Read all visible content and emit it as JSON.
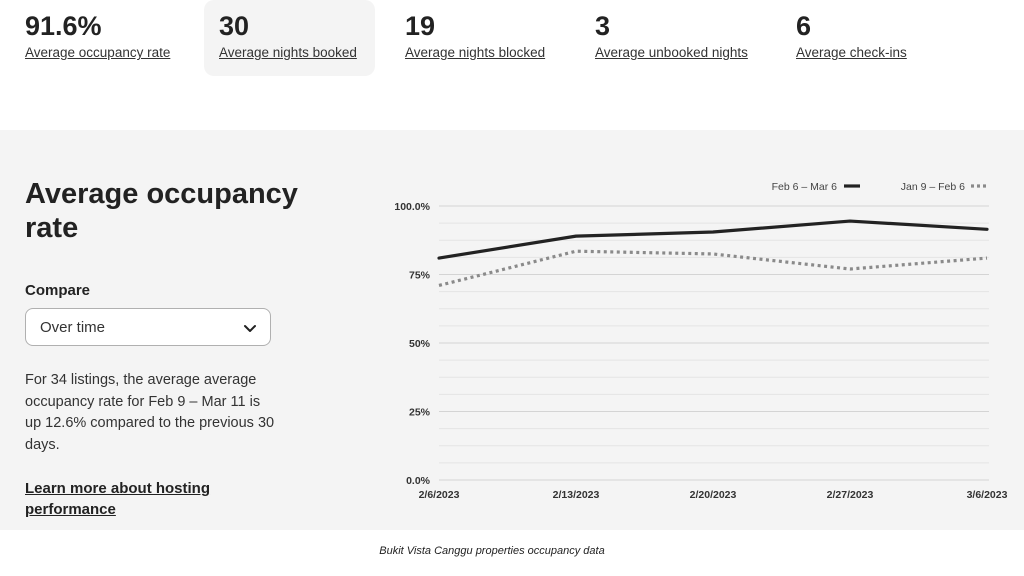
{
  "stats": [
    {
      "value": "91.6%",
      "label": "Average occupancy rate"
    },
    {
      "value": "30",
      "label": "Average nights booked"
    },
    {
      "value": "19",
      "label": "Average nights blocked"
    },
    {
      "value": "3",
      "label": "Average unbooked nights"
    },
    {
      "value": "6",
      "label": "Average check-ins"
    }
  ],
  "panel": {
    "title": "Average occupancy rate",
    "compare_label": "Compare",
    "compare_value": "Over time",
    "description": "For 34 listings, the average average occupancy rate for Feb 9 – Mar 11 is up 12.6% compared to the previous 30 days.",
    "link": "Learn more about hosting performance"
  },
  "chart_data": {
    "type": "line",
    "x": [
      "2/6/2023",
      "2/13/2023",
      "2/20/2023",
      "2/27/2023",
      "3/6/2023"
    ],
    "y_ticks": [
      "100.0%",
      "75%",
      "50%",
      "25%",
      "0.0%"
    ],
    "ylim": [
      0,
      100
    ],
    "series": [
      {
        "name": "Feb 6 – Mar 6",
        "style": "solid",
        "values": [
          81,
          89,
          90.5,
          94.5,
          91.5
        ]
      },
      {
        "name": "Jan 9 – Feb 6",
        "style": "dotted",
        "values": [
          71,
          83.5,
          82.5,
          77,
          81
        ]
      }
    ],
    "legend_position": "top-right"
  },
  "caption": "Bukit Vista Canggu properties occupancy data"
}
